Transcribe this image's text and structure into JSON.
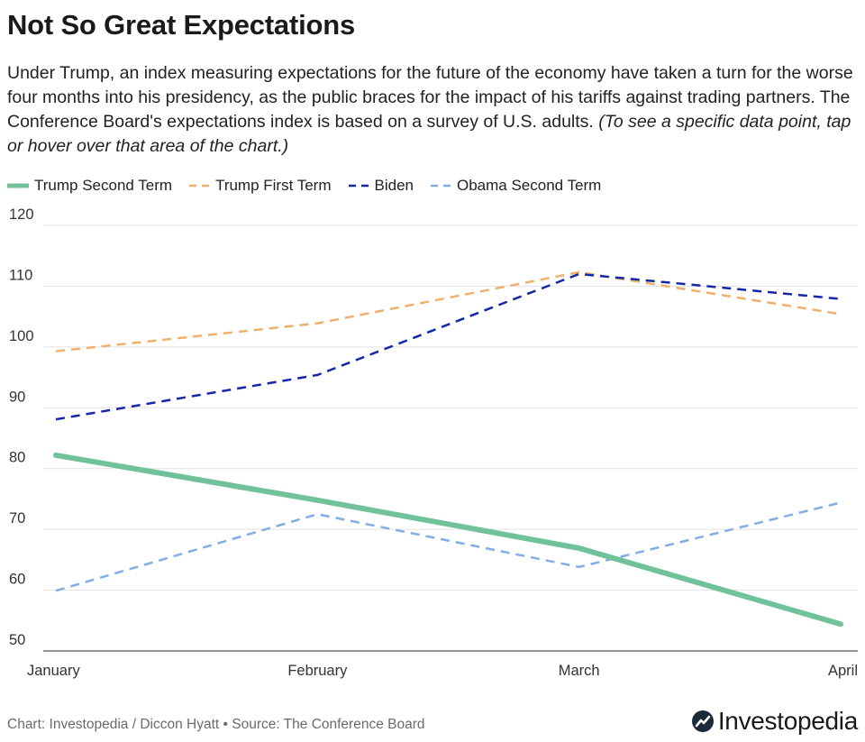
{
  "header": {
    "title": "Not So Great Expectations",
    "description": "Under Trump, an index measuring expectations for the future of the economy have taken a turn for the worse four months into his presidency, as the public braces for the impact of his tariffs against trading partners. The Conference Board's expectations index is based on a survey of U.S. adults. ",
    "note": "(To see a specific data point, tap or hover over that area of the chart.)"
  },
  "legend": {
    "items": [
      {
        "label": "Trump Second Term"
      },
      {
        "label": "Trump First Term"
      },
      {
        "label": "Biden"
      },
      {
        "label": "Obama Second Term"
      }
    ]
  },
  "footer": {
    "credit": "Chart: Investopedia / Diccon Hyatt • Source: The Conference Board",
    "brand": "Investopedia"
  },
  "chart_data": {
    "type": "line",
    "title": "Not So Great Expectations",
    "xlabel": "",
    "ylabel": "",
    "categories": [
      "January",
      "February",
      "March",
      "April"
    ],
    "ylim": [
      50,
      120
    ],
    "yticks": [
      "120",
      "110",
      "100",
      "90",
      "80",
      "70",
      "60",
      "50"
    ],
    "grid": true,
    "legend_position": "top-left",
    "series": [
      {
        "name": "Trump Second Term",
        "values": [
          82.2,
          74.8,
          66.9,
          54.4
        ],
        "color": "#6fc29a",
        "style": "solid"
      },
      {
        "name": "Trump First Term",
        "values": [
          99.3,
          103.9,
          112.3,
          105.4
        ],
        "color": "#f0b06b",
        "style": "dashed"
      },
      {
        "name": "Biden",
        "values": [
          88.1,
          95.4,
          112.0,
          107.9
        ],
        "color": "#1427a8",
        "style": "dashed"
      },
      {
        "name": "Obama Second Term",
        "values": [
          59.9,
          72.5,
          63.8,
          74.4
        ],
        "color": "#82aee8",
        "style": "dashed"
      }
    ]
  }
}
